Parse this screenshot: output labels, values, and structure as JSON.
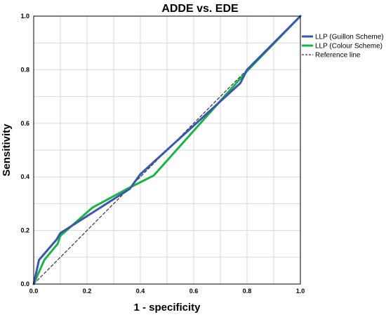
{
  "chart_data": {
    "type": "line",
    "title": "ADDE vs. EDE",
    "xlabel": "1 - specificity",
    "ylabel": "Sensitivity",
    "xlim": [
      0,
      1
    ],
    "ylim": [
      0,
      1
    ],
    "xticks": [
      "0.0",
      "0.2",
      "0.4",
      "0.6",
      "0.8",
      "1.0"
    ],
    "yticks": [
      "0.0",
      "0.2",
      "0.4",
      "0.6",
      "0.8",
      "1.0"
    ],
    "grid": true,
    "grid_step": 0.1,
    "legend_position": "top-right",
    "series": [
      {
        "name": "LLP (Guillon Scheme)",
        "color": "#3a57a8",
        "style": "solid",
        "x": [
          0,
          0.02,
          0.085,
          0.1,
          0.36,
          0.4,
          0.775,
          0.8,
          1.0
        ],
        "y": [
          0,
          0.09,
          0.165,
          0.19,
          0.355,
          0.41,
          0.75,
          0.8,
          1.0
        ]
      },
      {
        "name": "LLP (Colour Scheme)",
        "color": "#1cb24a",
        "style": "solid",
        "x": [
          0,
          0.04,
          0.09,
          0.1,
          0.22,
          0.35,
          0.45,
          0.8,
          1.0
        ],
        "y": [
          0,
          0.09,
          0.15,
          0.18,
          0.285,
          0.355,
          0.405,
          0.795,
          1.0
        ]
      },
      {
        "name": "Reference line",
        "color": "#333333",
        "style": "dashed",
        "x": [
          0,
          1
        ],
        "y": [
          0,
          1
        ]
      }
    ]
  }
}
